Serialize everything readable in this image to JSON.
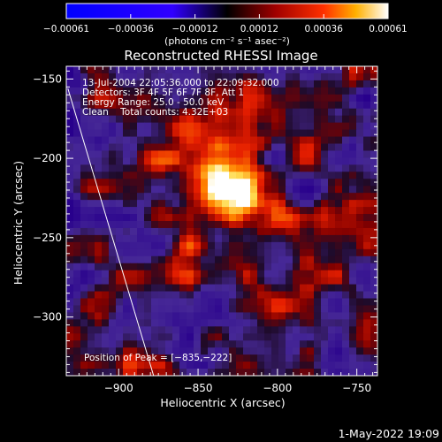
{
  "chart_data": {
    "type": "heatmap",
    "title": "Reconstructed RHESSI Image",
    "xlabel": "Heliocentric X (arcsec)",
    "ylabel": "Heliocentric Y (arcsec)",
    "xlim": [
      -933,
      -737
    ],
    "ylim": [
      -337,
      -142
    ],
    "x_ticks": [
      -900,
      -850,
      -800,
      -750
    ],
    "x_tick_labels": [
      "−900",
      "−850",
      "−800",
      "−750"
    ],
    "y_ticks": [
      -150,
      -200,
      -250,
      -300
    ],
    "y_tick_labels": [
      "−150",
      "−200",
      "−250",
      "−300"
    ],
    "colorbar": {
      "min": -0.00061,
      "max": 0.00061,
      "tick_labels": [
        "−0.00061",
        "−0.00036",
        "−0.00012",
        "0.00012",
        "0.00036",
        "0.00061"
      ],
      "unit_label": "(photons cm⁻² s⁻¹ asec⁻²)",
      "colors": [
        "#0000ff",
        "#2a00ff",
        "#000000",
        "#800000",
        "#ff0000",
        "#ffb000",
        "#ffffff"
      ]
    },
    "annotations": [
      "13-Jul-2004 22:05:36.000 to 22:09:32.000",
      "Detectors: 3F 4F 5F 6F 7F 8F, Att 1",
      "Energy Range: 25.0 - 50.0 keV",
      "Clean    Total counts: 4.32E+03"
    ],
    "peak_text": "Position of Peak = [−835,−222]",
    "peak": {
      "x": -835,
      "y": -222
    },
    "limb_line": [
      {
        "x": -932,
        "y": -156
      },
      {
        "x": -878,
        "y": -337
      }
    ]
  },
  "footer": {
    "timestamp": "1-May-2022 19:09"
  }
}
